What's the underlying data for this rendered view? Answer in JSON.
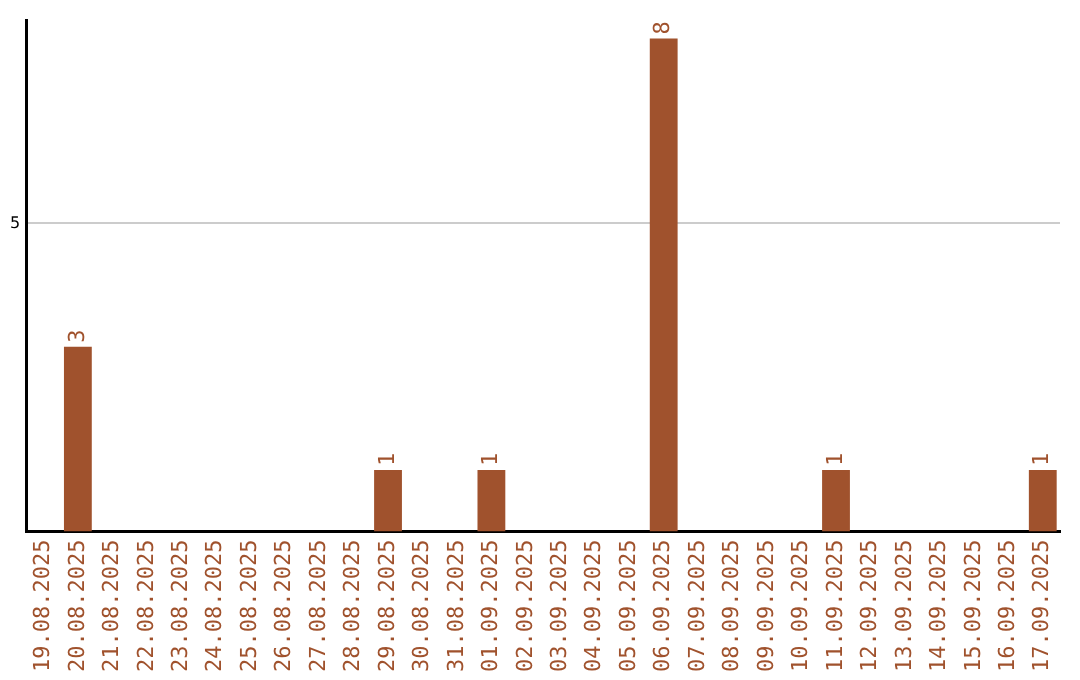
{
  "chart_data": {
    "type": "bar",
    "categories": [
      "19.08.2025",
      "20.08.2025",
      "21.08.2025",
      "22.08.2025",
      "23.08.2025",
      "24.08.2025",
      "25.08.2025",
      "26.08.2025",
      "27.08.2025",
      "28.08.2025",
      "29.08.2025",
      "30.08.2025",
      "31.08.2025",
      "01.09.2025",
      "02.09.2025",
      "03.09.2025",
      "04.09.2025",
      "05.09.2025",
      "06.09.2025",
      "07.09.2025",
      "08.09.2025",
      "09.09.2025",
      "10.09.2025",
      "11.09.2025",
      "12.09.2025",
      "13.09.2025",
      "14.09.2025",
      "15.09.2025",
      "16.09.2025",
      "17.09.2025"
    ],
    "values": [
      0,
      3,
      0,
      0,
      0,
      0,
      0,
      0,
      0,
      0,
      1,
      0,
      0,
      1,
      0,
      0,
      0,
      0,
      8,
      0,
      0,
      0,
      0,
      1,
      0,
      0,
      0,
      0,
      0,
      1
    ],
    "value_labels": [
      null,
      "3",
      null,
      null,
      null,
      null,
      null,
      null,
      null,
      null,
      "1",
      null,
      null,
      "1",
      null,
      null,
      null,
      null,
      "8",
      null,
      null,
      null,
      null,
      "1",
      null,
      null,
      null,
      null,
      null,
      "1"
    ],
    "color": "#a0522d",
    "ylim": [
      0,
      8.3
    ],
    "yticks": [
      5
    ],
    "grid": "y",
    "legend": false
  }
}
